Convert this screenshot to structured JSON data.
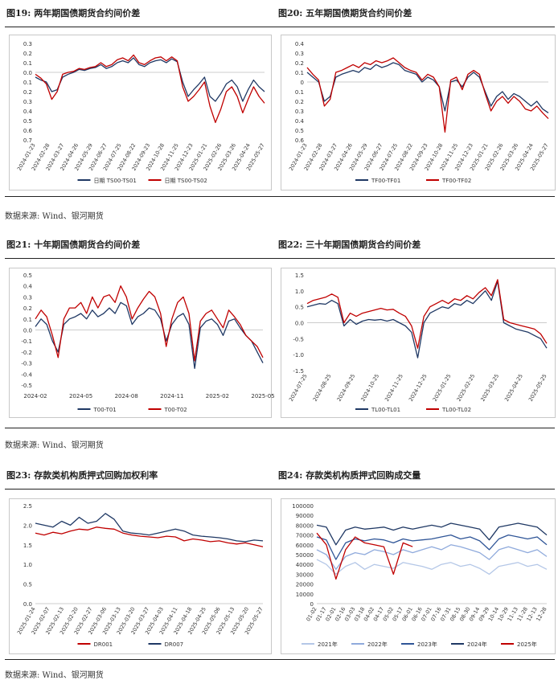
{
  "figures": [
    {
      "label": "图19:",
      "title": "两年期国债期货合约间价差"
    },
    {
      "label": "图20:",
      "title": "五年期国债期货合约间价差"
    },
    {
      "label": "图21:",
      "title": "十年期国债期货合约间价差"
    },
    {
      "label": "图22:",
      "title": "三十年期国债期货合约间价差"
    },
    {
      "label": "图23:",
      "title": "存款类机构质押式回购加权利率"
    },
    {
      "label": "图24:",
      "title": "存款类机构质押式回购成交量"
    }
  ],
  "source_note": "数据来源:  Wind、银河期货",
  "colors": {
    "navy": "#1f3864",
    "red": "#c00000"
  },
  "chart_data": [
    {
      "id": "c19",
      "type": "line",
      "ylim": [
        -0.7,
        0.3
      ],
      "yticks": [
        0.3,
        0.2,
        0.1,
        0.0,
        -0.1,
        -0.2,
        -0.3,
        -0.4,
        -0.5,
        -0.6,
        -0.7
      ],
      "ytick_labels": [
        "0.3",
        "0.2",
        "0.1",
        "0.0",
        "0.1",
        "0.2",
        "0.3",
        "0.4",
        "0.5",
        "0.6",
        "0.7"
      ],
      "xticks": [
        "2024-01-23",
        "2024-02-28",
        "2024-03-27",
        "2024-04-26",
        "2024-05-29",
        "2024-06-27",
        "2024-07-25",
        "2024-08-22",
        "2024-09-23",
        "2024-10-28",
        "2024-11-25",
        "2024-12-23",
        "2025-01-21",
        "2025-02-26",
        "2025-03-26",
        "2025-04-24",
        "2025-05-27"
      ],
      "series": [
        {
          "name": "日期 TS00-TS01",
          "color": "#1f3864",
          "values": [
            -0.05,
            -0.08,
            -0.1,
            -0.2,
            -0.18,
            -0.05,
            -0.02,
            0.0,
            0.03,
            0.02,
            0.04,
            0.05,
            0.08,
            0.04,
            0.06,
            0.1,
            0.12,
            0.1,
            0.15,
            0.08,
            0.06,
            0.1,
            0.12,
            0.13,
            0.1,
            0.14,
            0.11,
            -0.1,
            -0.25,
            -0.18,
            -0.12,
            -0.05,
            -0.25,
            -0.3,
            -0.22,
            -0.12,
            -0.08,
            -0.15,
            -0.3,
            -0.18,
            -0.08,
            -0.15,
            -0.2
          ]
        },
        {
          "name": "日期 TS00-TS02",
          "color": "#c00000",
          "values": [
            -0.02,
            -0.06,
            -0.12,
            -0.28,
            -0.2,
            -0.02,
            0.0,
            0.01,
            0.04,
            0.03,
            0.05,
            0.06,
            0.1,
            0.06,
            0.08,
            0.13,
            0.15,
            0.12,
            0.18,
            0.1,
            0.08,
            0.12,
            0.15,
            0.16,
            0.12,
            0.16,
            0.12,
            -0.15,
            -0.3,
            -0.25,
            -0.18,
            -0.1,
            -0.35,
            -0.52,
            -0.38,
            -0.2,
            -0.15,
            -0.25,
            -0.42,
            -0.28,
            -0.15,
            -0.25,
            -0.32
          ]
        }
      ]
    },
    {
      "id": "c20",
      "type": "line",
      "ylim": [
        -0.6,
        0.4
      ],
      "yticks": [
        0.4,
        0.3,
        0.2,
        0.1,
        0.0,
        -0.1,
        -0.2,
        -0.3,
        -0.4,
        -0.5,
        -0.6
      ],
      "ytick_labels": [
        "0.4",
        "0.3",
        "0.2",
        "0.1",
        "0",
        "0.1",
        "0.2",
        "0.3",
        "0.4",
        "0.5",
        "0.6"
      ],
      "xticks": [
        "2024-01-23",
        "2024-02-28",
        "2024-03-27",
        "2024-04-26",
        "2024-05-29",
        "2024-06-27",
        "2024-07-25",
        "2024-08-22",
        "2024-09-23",
        "2024-10-28",
        "2024-11-25",
        "2024-12-23",
        "2025-01-21",
        "2025-02-26",
        "2025-03-26",
        "2025-04-24",
        "2025-05-27"
      ],
      "series": [
        {
          "name": "TF00-TF01",
          "color": "#1f3864",
          "values": [
            0.1,
            0.05,
            0.0,
            -0.2,
            -0.15,
            0.05,
            0.08,
            0.1,
            0.12,
            0.1,
            0.15,
            0.13,
            0.18,
            0.15,
            0.17,
            0.2,
            0.18,
            0.12,
            0.1,
            0.08,
            0.0,
            0.05,
            0.02,
            -0.05,
            -0.3,
            0.0,
            0.02,
            -0.05,
            0.05,
            0.1,
            0.05,
            -0.1,
            -0.25,
            -0.15,
            -0.1,
            -0.18,
            -0.12,
            -0.15,
            -0.2,
            -0.25,
            -0.2,
            -0.28,
            -0.32
          ]
        },
        {
          "name": "TF00-TF02",
          "color": "#c00000",
          "values": [
            0.15,
            0.08,
            0.02,
            -0.25,
            -0.18,
            0.1,
            0.12,
            0.15,
            0.18,
            0.15,
            0.2,
            0.18,
            0.22,
            0.2,
            0.22,
            0.25,
            0.2,
            0.15,
            0.12,
            0.1,
            0.02,
            0.08,
            0.05,
            -0.05,
            -0.52,
            0.02,
            0.05,
            -0.08,
            0.08,
            0.12,
            0.08,
            -0.12,
            -0.3,
            -0.2,
            -0.15,
            -0.22,
            -0.15,
            -0.2,
            -0.28,
            -0.3,
            -0.25,
            -0.32,
            -0.38
          ]
        }
      ]
    },
    {
      "id": "c21",
      "type": "line",
      "ylim": [
        -0.5,
        0.5
      ],
      "yticks": [
        0.5,
        0.4,
        0.3,
        0.2,
        0.1,
        0.0,
        -0.1,
        -0.2,
        -0.3,
        -0.4,
        -0.5
      ],
      "ytick_labels": [
        "0.5",
        "0.4",
        "0.3",
        "0.2",
        "0.1",
        "0.0",
        "-0.1",
        "-0.2",
        "-0.3",
        "-0.4",
        "-0.5"
      ],
      "xticks": [
        "2024-02",
        "2024-05",
        "2024-08",
        "2024-11",
        "2025-02",
        "2025-05"
      ],
      "series": [
        {
          "name": "T00-T01",
          "color": "#1f3864",
          "values": [
            0.03,
            0.1,
            0.05,
            -0.1,
            -0.2,
            0.05,
            0.1,
            0.12,
            0.15,
            0.1,
            0.18,
            0.12,
            0.15,
            0.2,
            0.15,
            0.25,
            0.22,
            0.05,
            0.12,
            0.15,
            0.2,
            0.18,
            0.1,
            -0.1,
            0.05,
            0.12,
            0.15,
            0.05,
            -0.35,
            0.02,
            0.08,
            0.1,
            0.05,
            -0.05,
            0.08,
            0.1,
            0.02,
            -0.05,
            -0.1,
            -0.2,
            -0.3
          ]
        },
        {
          "name": "T00-T02",
          "color": "#c00000",
          "values": [
            0.1,
            0.18,
            0.12,
            -0.05,
            -0.25,
            0.1,
            0.2,
            0.2,
            0.25,
            0.15,
            0.3,
            0.2,
            0.3,
            0.32,
            0.25,
            0.4,
            0.3,
            0.1,
            0.2,
            0.28,
            0.35,
            0.3,
            0.15,
            -0.15,
            0.1,
            0.25,
            0.3,
            0.15,
            -0.28,
            0.08,
            0.15,
            0.18,
            0.1,
            0.02,
            0.18,
            0.12,
            0.05,
            -0.05,
            -0.1,
            -0.15,
            -0.25
          ]
        }
      ]
    },
    {
      "id": "c22",
      "type": "line",
      "ylim": [
        -1.5,
        1.5
      ],
      "yticks": [
        1.5,
        1.0,
        0.5,
        0.0,
        -0.5,
        -1.0,
        -1.5
      ],
      "ytick_labels": [
        "1.5",
        "1.0",
        "0.5",
        "0.0",
        "-0.5",
        "-1.0",
        "-1.5"
      ],
      "xticks": [
        "2024-07-25",
        "2024-08-25",
        "2024-09-25",
        "2024-10-25",
        "2024-11-25",
        "2024-12-25",
        "2025-01-25",
        "2025-02-25",
        "2025-03-25",
        "2025-04-25",
        "2025-05-25"
      ],
      "series": [
        {
          "name": "TL00-TL01",
          "color": "#1f3864",
          "values": [
            0.5,
            0.55,
            0.6,
            0.58,
            0.7,
            0.6,
            -0.1,
            0.1,
            -0.05,
            0.05,
            0.1,
            0.08,
            0.1,
            0.05,
            0.1,
            0.0,
            -0.1,
            -0.3,
            -1.1,
            0.0,
            0.3,
            0.4,
            0.5,
            0.45,
            0.6,
            0.55,
            0.7,
            0.6,
            0.8,
            1.0,
            0.7,
            1.3,
            0.0,
            -0.1,
            -0.2,
            -0.25,
            -0.3,
            -0.4,
            -0.5,
            -0.8
          ]
        },
        {
          "name": "TL00-TL02",
          "color": "#c00000",
          "values": [
            0.6,
            0.7,
            0.75,
            0.8,
            0.9,
            0.8,
            0.0,
            0.3,
            0.2,
            0.3,
            0.35,
            0.4,
            0.45,
            0.4,
            0.42,
            0.3,
            0.2,
            -0.1,
            -0.8,
            0.2,
            0.5,
            0.6,
            0.7,
            0.6,
            0.75,
            0.7,
            0.85,
            0.75,
            0.95,
            1.1,
            0.85,
            1.35,
            0.1,
            0.0,
            -0.05,
            -0.1,
            -0.15,
            -0.2,
            -0.35,
            -0.65
          ]
        }
      ]
    },
    {
      "id": "c23",
      "type": "line",
      "ylim": [
        0.0,
        2.5
      ],
      "yticks": [
        2.5,
        2.0,
        1.5,
        1.0,
        0.5,
        0.0
      ],
      "ytick_labels": [
        "2.5",
        "2.0",
        "1.5",
        "1.0",
        "0.5",
        "0.0"
      ],
      "xticks": [
        "2025-01-24",
        "2025-02-07",
        "2025-02-13",
        "2025-02-20",
        "2025-02-27",
        "2025-03-06",
        "2025-03-13",
        "2025-03-20",
        "2025-03-27",
        "2025-04-03",
        "2025-04-11",
        "2025-04-18",
        "2025-04-25",
        "2025-05-06",
        "2025-05-13",
        "2025-05-20",
        "2025-05-27"
      ],
      "series": [
        {
          "name": "DR001",
          "color": "#c00000",
          "values": [
            1.8,
            1.75,
            1.82,
            1.78,
            1.85,
            1.9,
            1.88,
            1.95,
            1.92,
            1.9,
            1.8,
            1.75,
            1.72,
            1.7,
            1.68,
            1.72,
            1.7,
            1.6,
            1.65,
            1.62,
            1.58,
            1.6,
            1.55,
            1.52,
            1.55,
            1.5,
            1.45
          ]
        },
        {
          "name": "DR007",
          "color": "#1f3864",
          "values": [
            2.05,
            2.0,
            1.95,
            2.1,
            2.0,
            2.2,
            2.05,
            2.1,
            2.3,
            2.15,
            1.85,
            1.8,
            1.78,
            1.75,
            1.8,
            1.85,
            1.9,
            1.85,
            1.75,
            1.72,
            1.7,
            1.68,
            1.65,
            1.6,
            1.58,
            1.62,
            1.6
          ]
        }
      ]
    },
    {
      "id": "c24",
      "type": "line",
      "ylim": [
        0,
        100000
      ],
      "yticks": [
        100000,
        90000,
        80000,
        70000,
        60000,
        50000,
        40000,
        30000,
        20000,
        10000,
        0
      ],
      "ytick_labels": [
        "100000",
        "90000",
        "80000",
        "70000",
        "60000",
        "50000",
        "40000",
        "30000",
        "20000",
        "10000",
        "0"
      ],
      "xticks": [
        "01-02",
        "01-17",
        "02-01",
        "02-16",
        "03-03",
        "03-18",
        "04-02",
        "04-17",
        "05-02",
        "05-17",
        "06-01",
        "06-16",
        "07-01",
        "07-16",
        "07-31",
        "08-15",
        "08-30",
        "09-14",
        "09-29",
        "10-14",
        "10-29",
        "11-13",
        "11-28",
        "12-13",
        "12-28"
      ],
      "series": [
        {
          "name": "2021年",
          "color": "#b4c7e7",
          "values": [
            45000,
            40000,
            30000,
            38000,
            42000,
            35000,
            40000,
            38000,
            36000,
            42000,
            40000,
            38000,
            35000,
            40000,
            42000,
            38000,
            40000,
            36000,
            30000,
            38000,
            40000,
            42000,
            38000,
            40000,
            35000
          ]
        },
        {
          "name": "2022年",
          "color": "#8faadc",
          "values": [
            55000,
            50000,
            35000,
            48000,
            52000,
            50000,
            55000,
            53000,
            50000,
            55000,
            52000,
            55000,
            58000,
            55000,
            60000,
            58000,
            55000,
            52000,
            45000,
            55000,
            58000,
            55000,
            52000,
            55000,
            48000
          ]
        },
        {
          "name": "2023年",
          "color": "#2f5597",
          "values": [
            68000,
            65000,
            45000,
            62000,
            66000,
            64000,
            66000,
            65000,
            62000,
            66000,
            64000,
            65000,
            66000,
            68000,
            70000,
            66000,
            68000,
            64000,
            55000,
            66000,
            70000,
            68000,
            66000,
            68000,
            60000
          ]
        },
        {
          "name": "2024年",
          "color": "#1f3864",
          "values": [
            80000,
            78000,
            60000,
            75000,
            78000,
            76000,
            77000,
            78000,
            75000,
            78000,
            76000,
            78000,
            80000,
            78000,
            82000,
            80000,
            78000,
            76000,
            65000,
            78000,
            80000,
            82000,
            80000,
            78000,
            70000
          ]
        },
        {
          "name": "2025年",
          "color": "#c00000",
          "values": [
            72000,
            60000,
            25000,
            55000,
            68000,
            62000,
            60000,
            58000,
            30000,
            62000,
            58000
          ]
        }
      ]
    }
  ]
}
